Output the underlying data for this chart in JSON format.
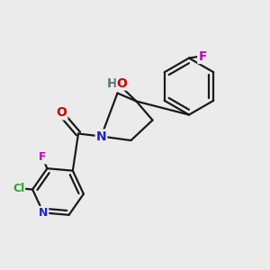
{
  "bg_color": "#ebebeb",
  "bond_color": "#1a1a1a",
  "atom_colors": {
    "N": "#2222cc",
    "O": "#cc0000",
    "F": "#cc00cc",
    "Cl": "#22aa22",
    "H": "#557777",
    "C": "#1a1a1a"
  },
  "font_size": 10,
  "small_font_size": 9,
  "lw": 1.6
}
